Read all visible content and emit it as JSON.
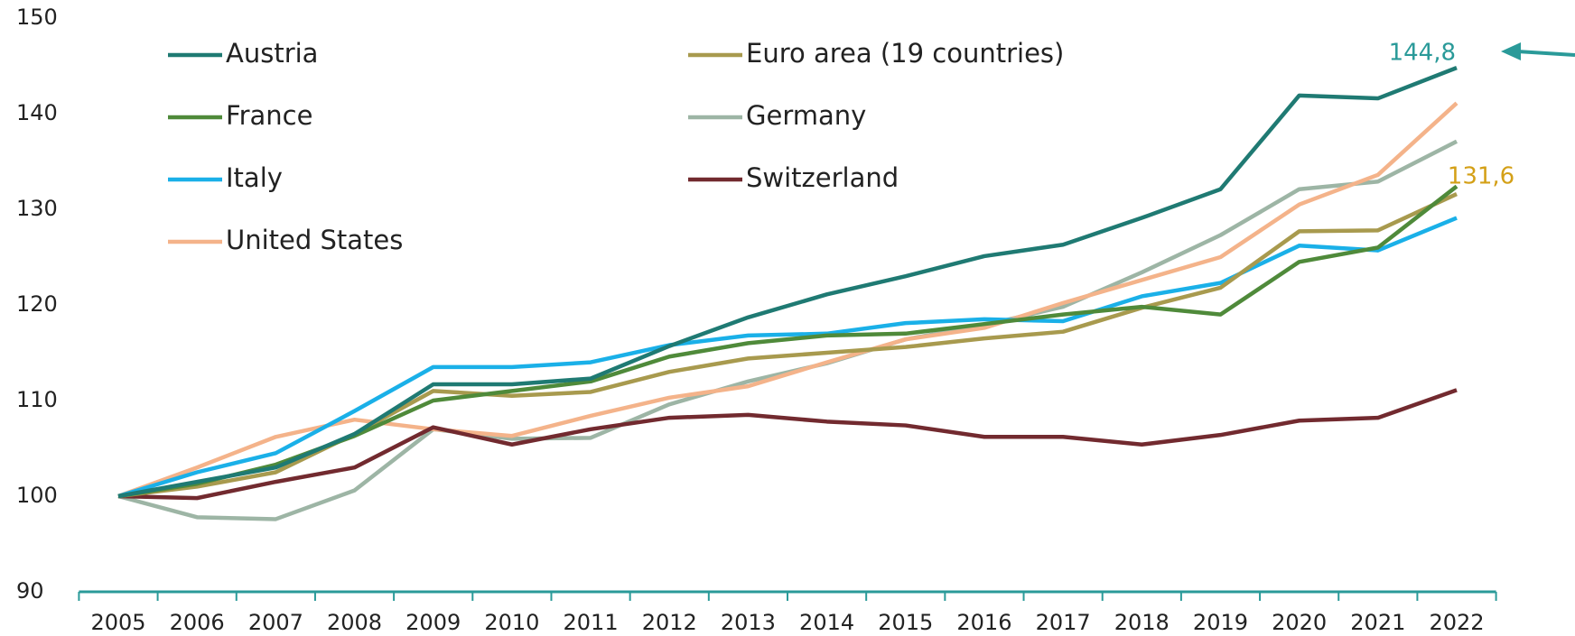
{
  "chart_data": {
    "type": "line",
    "categories": [
      "2005",
      "2006",
      "2007",
      "2008",
      "2009",
      "2010",
      "2011",
      "2012",
      "2013",
      "2014",
      "2015",
      "2016",
      "2017",
      "2018",
      "2019",
      "2020",
      "2021",
      "2022"
    ],
    "series": [
      {
        "name": "Austria",
        "color": "#1f7a73",
        "values": [
          100,
          101.5,
          103,
          106.5,
          111.7,
          111.7,
          112.3,
          115.7,
          118.7,
          121.1,
          123,
          125.1,
          126.3,
          129.1,
          132.1,
          141.9,
          141.6,
          144.8
        ]
      },
      {
        "name": "Euro area (19 countries)",
        "color": "#a89a4e",
        "values": [
          100,
          101,
          102.5,
          106.5,
          111,
          110.5,
          110.9,
          113,
          114.4,
          115,
          115.6,
          116.5,
          117.2,
          119.7,
          121.8,
          127.7,
          127.8,
          131.6
        ]
      },
      {
        "name": "France",
        "color": "#4f8a3a",
        "values": [
          100,
          101.3,
          103.3,
          106.3,
          110,
          111,
          112,
          114.6,
          116,
          116.8,
          117,
          118,
          119,
          119.8,
          119,
          124.5,
          126,
          132.4
        ]
      },
      {
        "name": "Germany",
        "color": "#9db5a5",
        "values": [
          100,
          97.8,
          97.6,
          100.6,
          107,
          106,
          106.1,
          109.6,
          112,
          113.9,
          116.4,
          117.9,
          119.8,
          123.4,
          127.3,
          132.1,
          132.9,
          137.1
        ]
      },
      {
        "name": "Italy",
        "color": "#1ab0e8",
        "values": [
          100,
          102.5,
          104.5,
          108.9,
          113.5,
          113.5,
          114,
          115.8,
          116.8,
          117,
          118.1,
          118.5,
          118.3,
          120.9,
          122.3,
          126.2,
          125.7,
          129.1
        ]
      },
      {
        "name": "Switzerland",
        "color": "#722a2f",
        "values": [
          100,
          99.8,
          101.5,
          103,
          107.2,
          105.4,
          107,
          108.2,
          108.5,
          107.8,
          107.4,
          106.2,
          106.2,
          105.4,
          106.4,
          107.9,
          108.2,
          111.1
        ]
      },
      {
        "name": "United States",
        "color": "#f4b38a",
        "values": [
          100,
          103,
          106.2,
          108,
          107,
          106.3,
          108.4,
          110.3,
          111.5,
          114,
          116.4,
          117.6,
          120.2,
          122.6,
          125,
          130.5,
          133.6,
          141.1
        ]
      }
    ],
    "annotations": [
      {
        "text": "144,8",
        "color": "#2a9a99"
      },
      {
        "text": "131,6",
        "color": "#d4a017"
      }
    ],
    "ylim": [
      90,
      150
    ],
    "yticks": [
      90,
      100,
      110,
      120,
      130,
      140,
      150
    ],
    "axis_color": "#2a9a99"
  }
}
